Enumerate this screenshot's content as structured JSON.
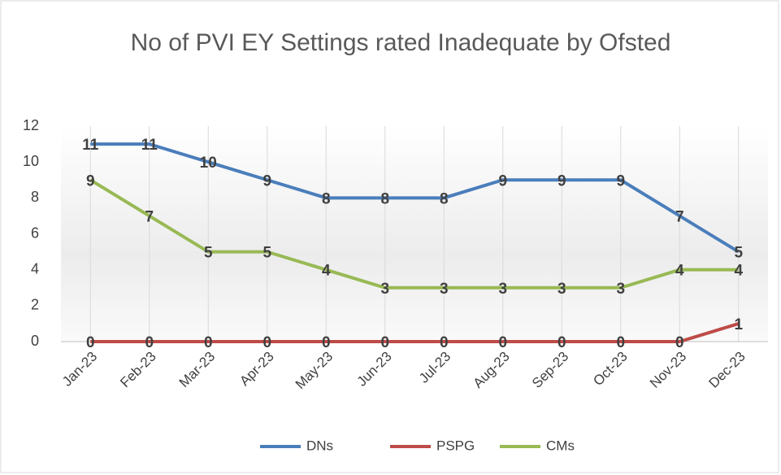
{
  "chart_data": {
    "type": "line",
    "title": "No of PVI EY Settings rated Inadequate by Ofsted",
    "categories": [
      "Jan-23",
      "Feb-23",
      "Mar-23",
      "Apr-23",
      "May-23",
      "Jun-23",
      "Jul-23",
      "Aug-23",
      "Sep-23",
      "Oct-23",
      "Nov-23",
      "Dec-23"
    ],
    "series": [
      {
        "name": "DNs",
        "color": "#4a7ebb",
        "values": [
          11,
          11,
          10,
          9,
          8,
          8,
          8,
          9,
          9,
          9,
          7,
          5
        ]
      },
      {
        "name": "PSPG",
        "color": "#be4b48",
        "values": [
          0,
          0,
          0,
          0,
          0,
          0,
          0,
          0,
          0,
          0,
          0,
          1
        ]
      },
      {
        "name": "CMs",
        "color": "#98b954",
        "values": [
          9,
          7,
          5,
          5,
          4,
          3,
          3,
          3,
          3,
          3,
          4,
          4
        ]
      }
    ],
    "ylim": [
      0,
      12
    ],
    "yticks": [
      0,
      2,
      4,
      6,
      8,
      10,
      12
    ],
    "grid": true,
    "legend": "bottom"
  }
}
